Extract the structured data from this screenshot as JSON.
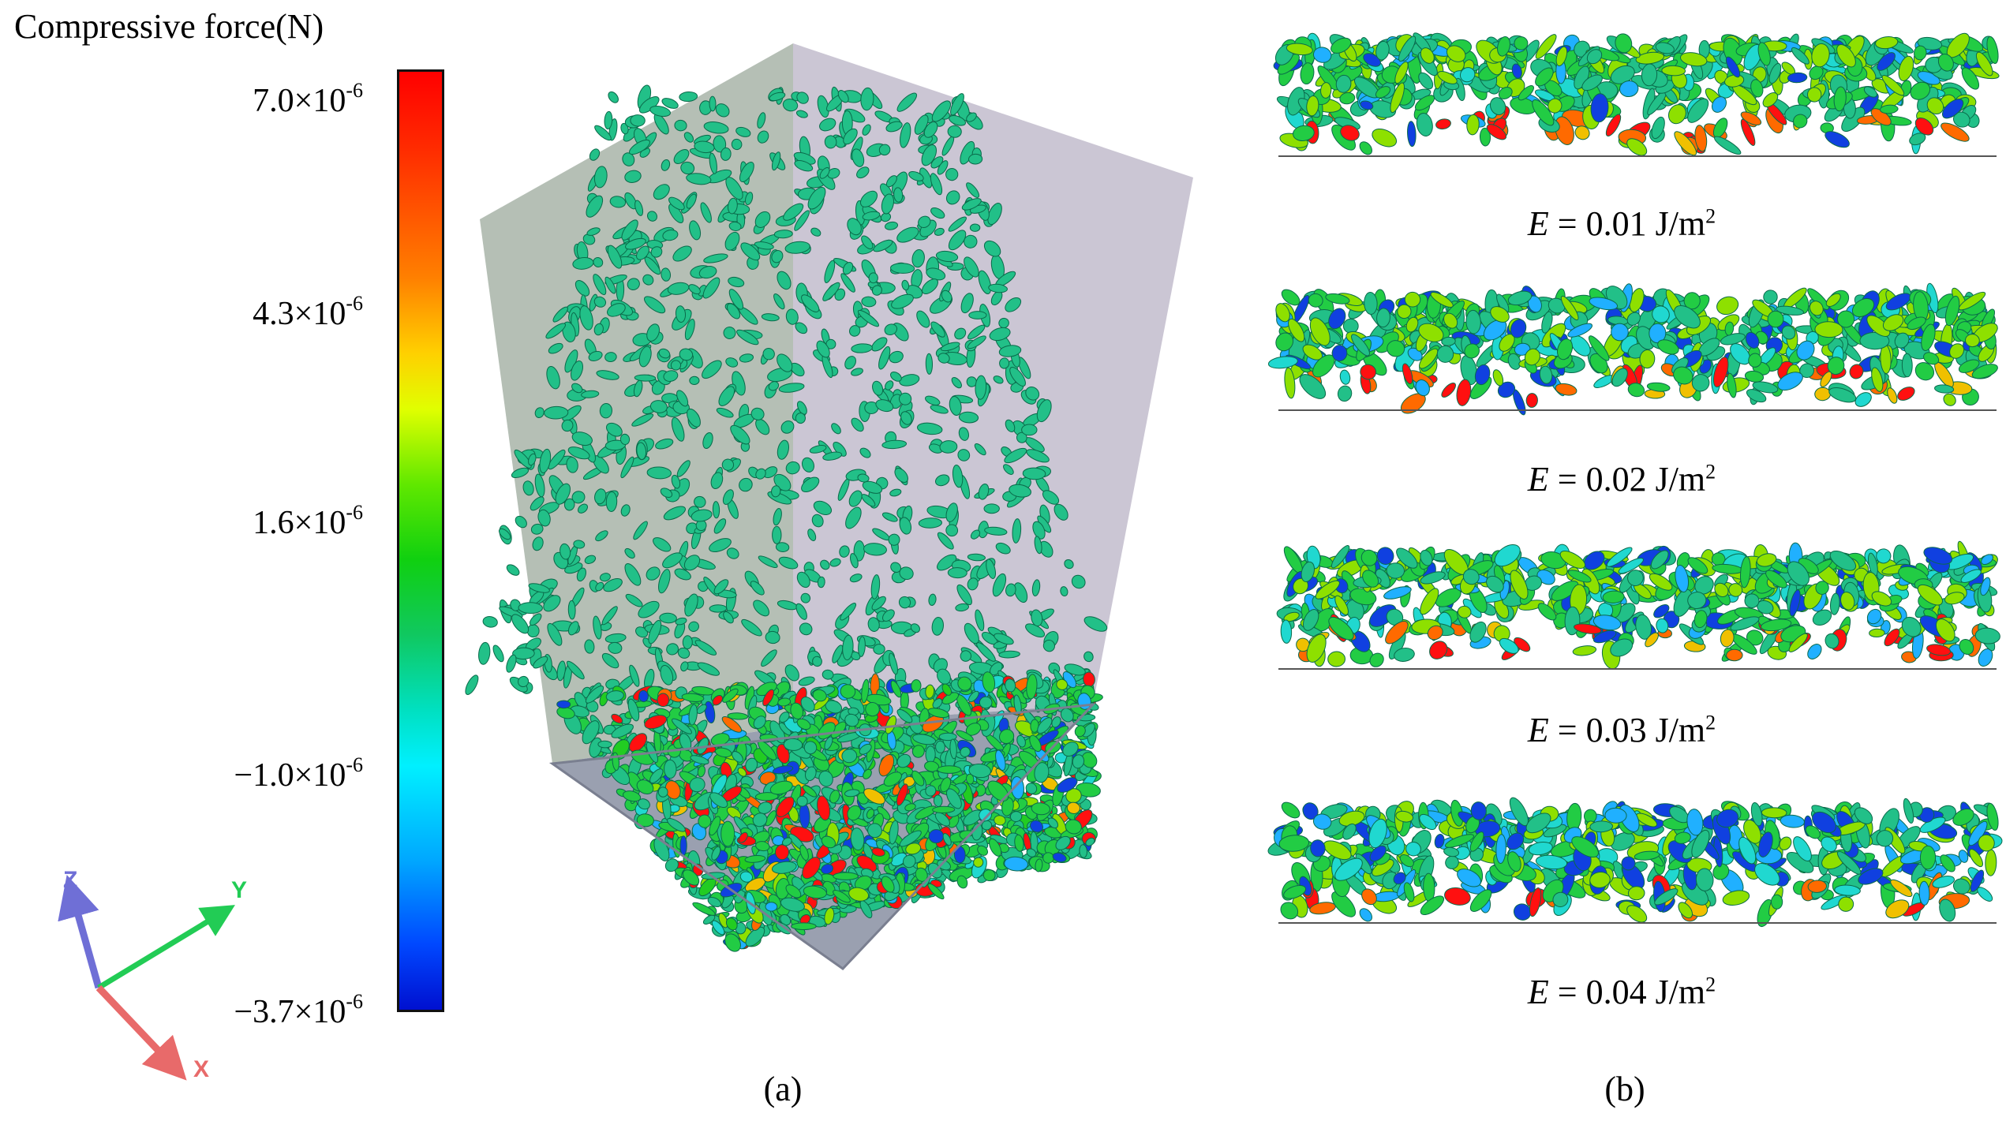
{
  "legend": {
    "title": "Compressive force(N)",
    "ticks": [
      {
        "base": "7.0×10",
        "exp": "-6"
      },
      {
        "base": "4.3×10",
        "exp": "-6"
      },
      {
        "base": "1.6×10",
        "exp": "-6"
      },
      {
        "base": "−1.0×10",
        "exp": "-6"
      },
      {
        "base": "−3.7×10",
        "exp": "-6"
      }
    ]
  },
  "axes_triad": {
    "z": "Z",
    "y": "Y",
    "x": "X",
    "colors": {
      "z": "#6f6fd6",
      "y": "#22cc55",
      "x": "#e86a6a"
    }
  },
  "panel_b": {
    "labels": [
      {
        "var": "E",
        "rest": " = 0.01 J/m",
        "exp": "2"
      },
      {
        "var": "E",
        "rest": " = 0.02 J/m",
        "exp": "2"
      },
      {
        "var": "E",
        "rest": " = 0.03 J/m",
        "exp": "2"
      },
      {
        "var": "E",
        "rest": " = 0.04 J/m",
        "exp": "2"
      }
    ]
  },
  "captions": {
    "a": "(a)",
    "b": "(b)"
  },
  "colors": {
    "particle": "#22c088",
    "red": "#ff1010",
    "box_left": "#a8b4a8",
    "box_right": "#c2bccc"
  }
}
